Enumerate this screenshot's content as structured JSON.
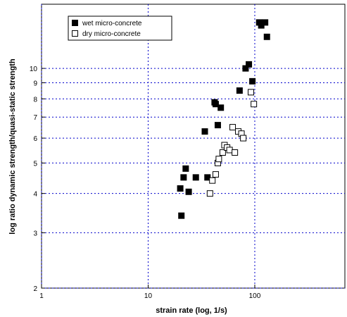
{
  "chart_data": {
    "type": "scatter",
    "xlabel": "strain rate (log, 1/s)",
    "ylabel": "log ratio dynamic strength/quasi-static strength",
    "xscale": "log",
    "yscale": "log",
    "xlim": [
      1,
      700
    ],
    "ylim": [
      2,
      16
    ],
    "x_ticks": [
      1,
      10,
      100
    ],
    "x_tick_labels": [
      "1",
      "10",
      "100"
    ],
    "y_ticks": [
      2,
      3,
      4,
      5,
      6,
      7,
      8,
      9,
      10
    ],
    "y_tick_labels": [
      "2",
      "3",
      "4",
      "5",
      "6",
      "7",
      "8",
      "9",
      "10"
    ],
    "grid": "dotted-major",
    "grid_color": "#0000cc",
    "legend_position": "top-left",
    "series": [
      {
        "name": "wet micro-concrete",
        "marker": "filled-square",
        "color": "#000000",
        "x": [
          20.5,
          21.5,
          22.5,
          20,
          24,
          28,
          34,
          36,
          42,
          43,
          45,
          48,
          72,
          82,
          88,
          95,
          110,
          115,
          125,
          130
        ],
        "y": [
          3.4,
          4.5,
          4.8,
          4.15,
          4.05,
          4.5,
          6.3,
          4.5,
          7.8,
          7.7,
          6.6,
          7.5,
          8.5,
          10.0,
          10.3,
          9.1,
          14.0,
          13.7,
          14.0,
          12.6
        ]
      },
      {
        "name": "dry micro-concrete",
        "marker": "open-square",
        "color": "#000000",
        "x": [
          38,
          40,
          43,
          45,
          46,
          50,
          52,
          55,
          58,
          62,
          65,
          70,
          75,
          78,
          92,
          98
        ],
        "y": [
          4.0,
          4.4,
          4.6,
          5.0,
          5.15,
          5.4,
          5.7,
          5.6,
          5.5,
          6.5,
          5.4,
          6.3,
          6.2,
          6.0,
          8.4,
          7.7
        ]
      }
    ]
  }
}
